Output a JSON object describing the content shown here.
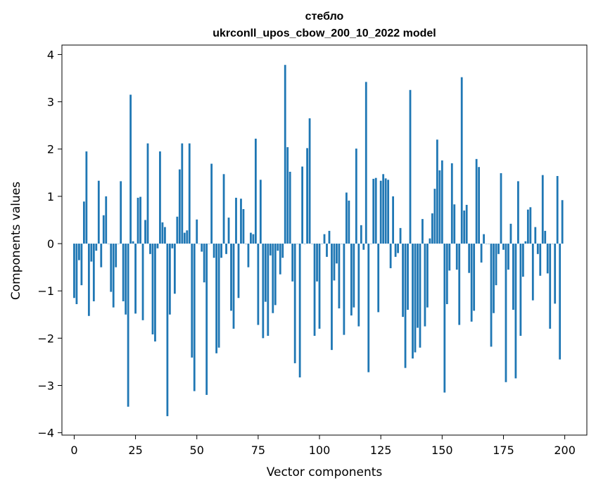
{
  "chart_data": {
    "type": "bar",
    "title": "стебло",
    "subtitle": "ukrconll_upos_cbow_200_10_2022 model",
    "xlabel": "Vector components",
    "ylabel": "Components values",
    "xlim": [
      -5,
      209
    ],
    "ylim": [
      -4.05,
      4.2
    ],
    "xticks": [
      0,
      25,
      50,
      75,
      100,
      125,
      150,
      175,
      200
    ],
    "xtick_labels": [
      "0",
      "25",
      "50",
      "75",
      "100",
      "125",
      "150",
      "175",
      "200"
    ],
    "yticks": [
      4,
      3,
      2,
      1,
      0,
      -1,
      -2,
      -3,
      -4
    ],
    "ytick_labels": [
      "4",
      "3",
      "2",
      "1",
      "0",
      "−1",
      "−2",
      "−3",
      "−4"
    ],
    "grid": false,
    "bar_color": "#1f77b4",
    "x": [
      0,
      1,
      2,
      3,
      4,
      5,
      6,
      7,
      8,
      9,
      10,
      11,
      12,
      13,
      14,
      15,
      16,
      17,
      18,
      19,
      20,
      21,
      22,
      23,
      24,
      25,
      26,
      27,
      28,
      29,
      30,
      31,
      32,
      33,
      34,
      35,
      36,
      37,
      38,
      39,
      40,
      41,
      42,
      43,
      44,
      45,
      46,
      47,
      48,
      49,
      50,
      51,
      52,
      53,
      54,
      55,
      56,
      57,
      58,
      59,
      60,
      61,
      62,
      63,
      64,
      65,
      66,
      67,
      68,
      69,
      70,
      71,
      72,
      73,
      74,
      75,
      76,
      77,
      78,
      79,
      80,
      81,
      82,
      83,
      84,
      85,
      86,
      87,
      88,
      89,
      90,
      91,
      92,
      93,
      94,
      95,
      96,
      97,
      98,
      99,
      100,
      101,
      102,
      103,
      104,
      105,
      106,
      107,
      108,
      109,
      110,
      111,
      112,
      113,
      114,
      115,
      116,
      117,
      118,
      119,
      120,
      121,
      122,
      123,
      124,
      125,
      126,
      127,
      128,
      129,
      130,
      131,
      132,
      133,
      134,
      135,
      136,
      137,
      138,
      139,
      140,
      141,
      142,
      143,
      144,
      145,
      146,
      147,
      148,
      149,
      150,
      151,
      152,
      153,
      154,
      155,
      156,
      157,
      158,
      159,
      160,
      161,
      162,
      163,
      164,
      165,
      166,
      167,
      168,
      169,
      170,
      171,
      172,
      173,
      174,
      175,
      176,
      177,
      178,
      179,
      180,
      181,
      182,
      183,
      184,
      185,
      186,
      187,
      188,
      189,
      190,
      191,
      192,
      193,
      194,
      195,
      196,
      197,
      198,
      199
    ],
    "values": [
      -1.15,
      -1.28,
      -0.35,
      -0.88,
      0.89,
      1.95,
      -1.53,
      -0.38,
      -1.22,
      -0.15,
      1.33,
      -0.5,
      0.6,
      1.0,
      0.0,
      -1.02,
      -1.35,
      -0.5,
      0.0,
      1.32,
      -1.22,
      -1.5,
      -3.45,
      3.15,
      0.05,
      -1.48,
      0.97,
      0.99,
      -1.62,
      0.5,
      2.12,
      -0.22,
      -1.92,
      -2.07,
      -0.1,
      1.95,
      0.45,
      0.35,
      -3.65,
      -1.5,
      -0.1,
      -1.06,
      0.57,
      1.57,
      2.12,
      0.23,
      0.28,
      2.12,
      -2.41,
      -3.12,
      0.51,
      0.0,
      -0.17,
      -0.82,
      -3.2,
      0.0,
      1.69,
      -0.3,
      -2.32,
      -2.2,
      -0.3,
      1.47,
      -0.22,
      0.55,
      -1.42,
      -1.8,
      0.97,
      -1.15,
      0.95,
      0.73,
      0.0,
      -0.5,
      0.23,
      0.2,
      2.22,
      -1.72,
      1.35,
      -2.0,
      -1.23,
      -1.95,
      -0.25,
      -1.47,
      -1.3,
      -0.15,
      -0.65,
      -0.3,
      3.78,
      2.04,
      1.52,
      -0.8,
      -2.53,
      0.0,
      -2.83,
      1.63,
      0.0,
      2.02,
      2.65,
      0.0,
      -1.95,
      -0.8,
      -1.8,
      0.0,
      0.2,
      -0.28,
      0.27,
      -2.25,
      -0.78,
      -0.42,
      -1.37,
      0.0,
      -1.93,
      1.08,
      0.91,
      -1.52,
      -1.35,
      2.01,
      -1.75,
      0.39,
      -0.13,
      3.42,
      -2.72,
      0.0,
      1.37,
      1.39,
      -1.45,
      1.33,
      1.47,
      1.38,
      1.35,
      -0.52,
      1.0,
      -0.28,
      -0.2,
      0.33,
      -1.55,
      -2.63,
      -1.4,
      3.25,
      -2.43,
      -2.3,
      -1.78,
      -2.2,
      0.52,
      -1.75,
      -1.35,
      0.11,
      0.64,
      1.16,
      2.2,
      1.55,
      1.76,
      -3.15,
      -1.28,
      -0.57,
      1.7,
      0.83,
      -0.55,
      -1.72,
      3.52,
      0.7,
      0.82,
      -0.62,
      -1.65,
      -1.42,
      1.79,
      1.62,
      -0.4,
      0.2,
      0.0,
      0.0,
      -2.18,
      -1.47,
      -0.88,
      -0.22,
      1.49,
      -0.13,
      -2.93,
      -0.55,
      0.42,
      -1.4,
      -2.85,
      1.32,
      -1.95,
      -0.7,
      0.05,
      0.72,
      0.77,
      -1.2,
      0.35,
      -0.22,
      -0.68,
      1.45,
      0.27,
      -0.63,
      -1.8,
      0.0,
      -1.27,
      1.43,
      -2.45,
      0.92
    ]
  }
}
